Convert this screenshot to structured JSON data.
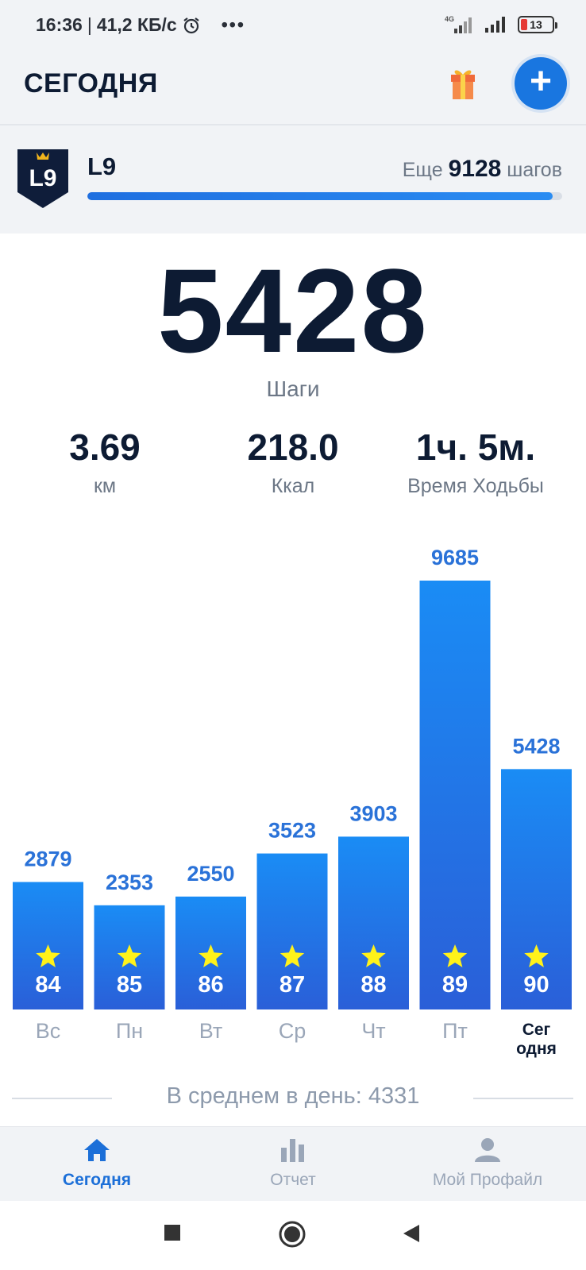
{
  "status_bar": {
    "time": "16:36",
    "separator": "|",
    "speed": "41,2 КБ/с",
    "network": "4G",
    "battery": "13"
  },
  "header": {
    "title": "СЕГОДНЯ"
  },
  "level": {
    "badge": "L9",
    "name": "L9",
    "remaining_prefix": "Еще",
    "remaining_value": "9128",
    "remaining_suffix": "шагов",
    "progress_fraction": 0.98
  },
  "today": {
    "steps": "5428",
    "steps_label": "Шаги",
    "distance_value": "3.69",
    "distance_label": "км",
    "calories_value": "218.0",
    "calories_label": "Ккал",
    "time_value": "1ч. 5м.",
    "time_label": "Время Ходьбы"
  },
  "chart_data": {
    "type": "bar",
    "categories": [
      "Вс",
      "Пн",
      "Вт",
      "Ср",
      "Чт",
      "Пт",
      "Сег одня"
    ],
    "category_lines": [
      [
        "Вс"
      ],
      [
        "Пн"
      ],
      [
        "Вт"
      ],
      [
        "Ср"
      ],
      [
        "Чт"
      ],
      [
        "Пт"
      ],
      [
        "Сег",
        "одня"
      ]
    ],
    "values": [
      2879,
      2353,
      2550,
      3523,
      3903,
      9685,
      5428
    ],
    "scores": [
      "84",
      "85",
      "86",
      "87",
      "88",
      "89",
      "90"
    ],
    "highlight_index": 6,
    "colors": {
      "bar_top": "#1a8cf5",
      "bar_bottom": "#2a5fd8",
      "value_label": "#2a72d8",
      "star": "#fff21a",
      "day_label": "#9aa6b8",
      "day_label_active": "#0d1b33"
    }
  },
  "average": {
    "text": "В среднем в день: 4331"
  },
  "bottom_nav": {
    "items": [
      {
        "label": "Сегодня",
        "icon": "home-icon",
        "active": true
      },
      {
        "label": "Отчет",
        "icon": "bar-chart-icon",
        "active": false
      },
      {
        "label": "Мой Профайл",
        "icon": "user-icon",
        "active": false
      }
    ]
  },
  "system_nav": {
    "buttons": [
      "recents-square-icon",
      "home-circle-icon",
      "back-triangle-icon"
    ]
  },
  "colors": {
    "accent": "#1976e0",
    "text_dark": "#0d1b33",
    "text_muted": "#6c7786",
    "background_gray": "#f1f3f6"
  }
}
